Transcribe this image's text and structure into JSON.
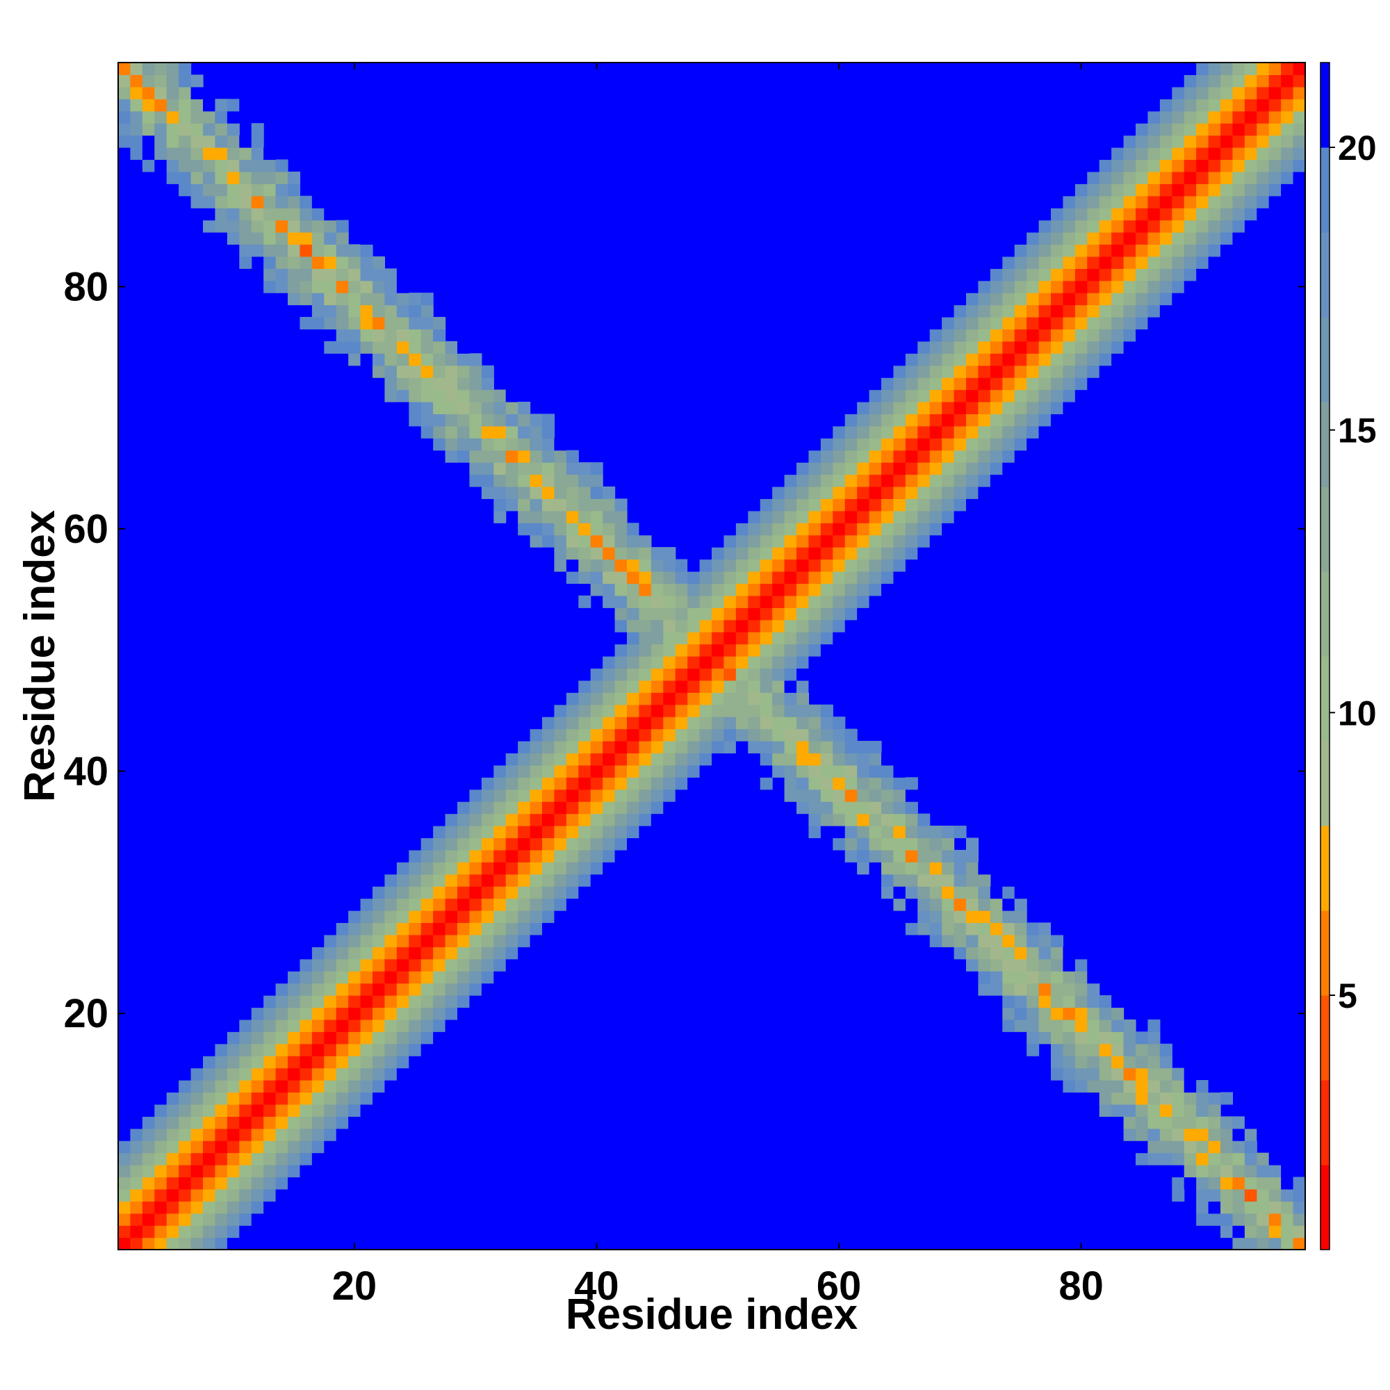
{
  "chart_data": {
    "type": "heatmap",
    "title": "",
    "xlabel": "Residue index",
    "ylabel": "Residue index",
    "n_residues": 98,
    "xlim": [
      1,
      98
    ],
    "ylim": [
      1,
      98
    ],
    "x_ticks": [
      20,
      40,
      60,
      80
    ],
    "y_ticks": [
      20,
      40,
      60,
      80
    ],
    "colorbar": {
      "ticks": [
        5,
        10,
        15,
        20
      ],
      "range": [
        0.5,
        21.5
      ],
      "levels": [
        {
          "max": 2,
          "color": "#ff0000"
        },
        {
          "max": 3.5,
          "color": "#ff2a00"
        },
        {
          "max": 5,
          "color": "#ff5500"
        },
        {
          "max": 6.5,
          "color": "#ff7f00"
        },
        {
          "max": 8,
          "color": "#ffaa00"
        },
        {
          "max": 9.5,
          "color": "#a2b88c"
        },
        {
          "max": 11,
          "color": "#99ba8a"
        },
        {
          "max": 12.5,
          "color": "#93b08f"
        },
        {
          "max": 14,
          "color": "#8aa896"
        },
        {
          "max": 15.5,
          "color": "#7f9fa0"
        },
        {
          "max": 17,
          "color": "#7097b3"
        },
        {
          "max": 18.5,
          "color": "#6791c2"
        },
        {
          "max": 20,
          "color": "#5a88c8"
        },
        {
          "max": 21.5,
          "color": "#0000ff"
        }
      ]
    },
    "pattern": {
      "description_of_values": "distance between residues i and j",
      "main_diagonal": {
        "direction": "i = j",
        "value_at_diagonal": 1,
        "increase_per_residue": 2.2
      },
      "anti_diagonal": {
        "direction": "i + j = 99",
        "value_at_center": 8,
        "increase_per_residue": 2.3,
        "extent": [
          1,
          98
        ]
      },
      "background_value": 21.5
    }
  }
}
